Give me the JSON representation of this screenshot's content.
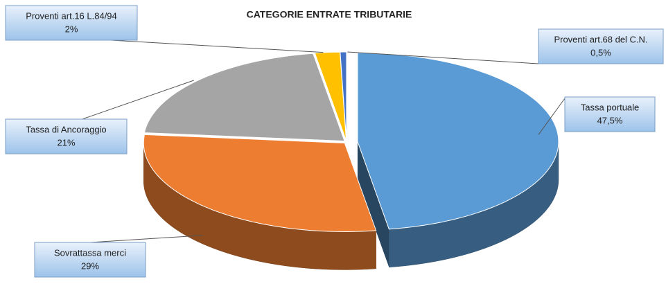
{
  "chart_data": {
    "type": "pie",
    "title": "CATEGORIE ENTRATE TRIBUTARIE",
    "categories": [
      "Tassa portuale",
      "Sovrattassa merci",
      "Tassa di Ancoraggio",
      "Proventi art.16 L.84/94",
      "Proventi art.68 del C.N."
    ],
    "values": [
      47.5,
      29,
      21,
      2,
      0.5
    ],
    "value_labels": [
      "47,5%",
      "29%",
      "21%",
      "2%",
      "0,5%"
    ],
    "colors": [
      "#5b9bd5",
      "#ed7d31",
      "#a5a5a5",
      "#ffc000",
      "#4472c4"
    ]
  }
}
